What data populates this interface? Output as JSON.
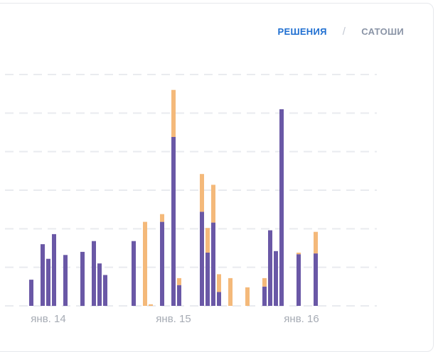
{
  "toggle": {
    "active_label": "РЕШЕНИЯ",
    "separator": "/",
    "inactive_label": "САТОШИ"
  },
  "colors": {
    "primary": "#6a58a6",
    "secondary": "#f4b97a",
    "grid": "#e9ebef",
    "toggle_active": "#1f6fd1",
    "toggle_inactive": "#8a94a6"
  },
  "chart_data": {
    "type": "bar",
    "stacked": true,
    "x_tick_labels": [
      {
        "label": "янв. 14",
        "x": 5
      },
      {
        "label": "янв. 15",
        "x": 27
      },
      {
        "label": "янв. 16",
        "x": 49.5
      }
    ],
    "ylim": [
      0,
      6
    ],
    "grid": true,
    "y_tick_labels": [],
    "series": [
      {
        "color": "#6a58a6",
        "points": [
          {
            "x": 2,
            "value": 0.68
          },
          {
            "x": 4,
            "value": 1.6
          },
          {
            "x": 5,
            "value": 1.22
          },
          {
            "x": 6,
            "value": 1.86
          },
          {
            "x": 8,
            "value": 1.32
          },
          {
            "x": 11,
            "value": 1.4
          },
          {
            "x": 13,
            "value": 1.68
          },
          {
            "x": 14,
            "value": 1.1
          },
          {
            "x": 15,
            "value": 0.8
          },
          {
            "x": 20,
            "value": 1.68
          },
          {
            "x": 22,
            "value": 0.0
          },
          {
            "x": 23,
            "value": 0.0
          },
          {
            "x": 25,
            "value": 2.18
          },
          {
            "x": 27,
            "value": 4.38
          },
          {
            "x": 28,
            "value": 0.54
          },
          {
            "x": 32,
            "value": 2.44
          },
          {
            "x": 33,
            "value": 1.38
          },
          {
            "x": 34,
            "value": 2.16
          },
          {
            "x": 35,
            "value": 0.36
          },
          {
            "x": 37,
            "value": 0.0
          },
          {
            "x": 40,
            "value": 0.0
          },
          {
            "x": 43,
            "value": 0.5
          },
          {
            "x": 44,
            "value": 1.96
          },
          {
            "x": 45,
            "value": 1.42
          },
          {
            "x": 46,
            "value": 5.1
          },
          {
            "x": 49,
            "value": 1.34
          },
          {
            "x": 52,
            "value": 1.36
          }
        ]
      },
      {
        "color": "#f4b97a",
        "points": [
          {
            "x": 22,
            "value": 2.18
          },
          {
            "x": 23,
            "value": 0.04
          },
          {
            "x": 25,
            "value": 0.2
          },
          {
            "x": 27,
            "value": 1.22
          },
          {
            "x": 28,
            "value": 0.18
          },
          {
            "x": 32,
            "value": 0.98
          },
          {
            "x": 33,
            "value": 0.64
          },
          {
            "x": 34,
            "value": 0.98
          },
          {
            "x": 35,
            "value": 0.46
          },
          {
            "x": 37,
            "value": 0.72
          },
          {
            "x": 40,
            "value": 0.48
          },
          {
            "x": 43,
            "value": 0.22
          },
          {
            "x": 49,
            "value": 0.04
          },
          {
            "x": 52,
            "value": 0.56
          }
        ]
      }
    ]
  }
}
